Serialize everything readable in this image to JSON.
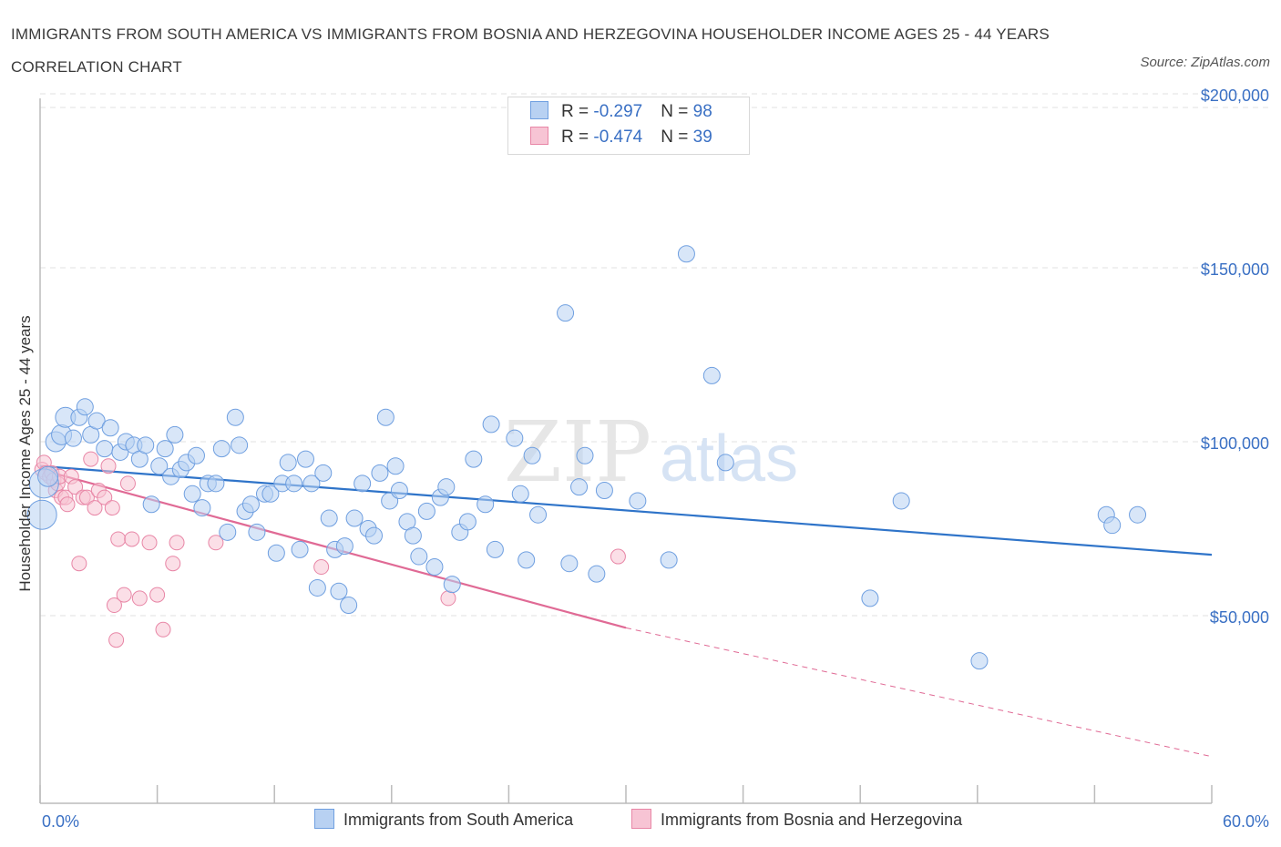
{
  "title": "IMMIGRANTS FROM SOUTH AMERICA VS IMMIGRANTS FROM BOSNIA AND HERZEGOVINA HOUSEHOLDER INCOME AGES 25 - 44 YEARS CORRELATION CHART",
  "source": "Source: ZipAtlas.com",
  "watermark": {
    "zip": "ZIP",
    "atlas": "atlas"
  },
  "legend": {
    "rows": [
      {
        "r_label": "R = ",
        "r_value": "-0.297",
        "n_label": "N = ",
        "n_value": "98"
      },
      {
        "r_label": "R = ",
        "r_value": "-0.474",
        "n_label": "N = ",
        "n_value": "39"
      }
    ]
  },
  "colors": {
    "blue_fill": "#b8d1f2",
    "blue_stroke": "#6f9fe0",
    "blue_line": "#2f74c9",
    "pink_fill": "#f7c4d4",
    "pink_stroke": "#e886a6",
    "pink_line": "#e06a95",
    "grid": "#e0e0e0",
    "tick_text": "#3a70c4"
  },
  "chart_data": {
    "type": "scatter",
    "title": "IMMIGRANTS FROM SOUTH AMERICA VS IMMIGRANTS FROM BOSNIA AND HERZEGOVINA HOUSEHOLDER INCOME AGES 25 - 44 YEARS CORRELATION CHART",
    "xlabel": "",
    "ylabel": "Householder Income Ages 25 - 44 years",
    "xlim": [
      0,
      60
    ],
    "ylim": [
      0,
      200000
    ],
    "x_tick_labels": [
      "0.0%",
      "60.0%"
    ],
    "y_ticks": [
      50000,
      100000,
      150000,
      200000
    ],
    "y_tick_labels": [
      "$50,000",
      "$100,000",
      "$150,000",
      "$200,000"
    ],
    "grid": true,
    "legend_position": "top-center and bottom",
    "series": [
      {
        "name": "Immigrants from South America",
        "color": "#6f9fe0",
        "r": -0.297,
        "n": 98,
        "trend": {
          "x": [
            0,
            60
          ],
          "y": [
            93000,
            67500
          ]
        },
        "points": [
          [
            0.1,
            79000
          ],
          [
            0.2,
            88000
          ],
          [
            0.4,
            90000
          ],
          [
            0.8,
            100000
          ],
          [
            1.1,
            102000
          ],
          [
            1.3,
            107000
          ],
          [
            1.7,
            101000
          ],
          [
            2.0,
            107000
          ],
          [
            2.3,
            110000
          ],
          [
            2.6,
            102000
          ],
          [
            2.9,
            106000
          ],
          [
            3.3,
            98000
          ],
          [
            3.6,
            104000
          ],
          [
            4.1,
            97000
          ],
          [
            4.4,
            100000
          ],
          [
            4.8,
            99000
          ],
          [
            5.1,
            95000
          ],
          [
            5.4,
            99000
          ],
          [
            5.7,
            82000
          ],
          [
            6.1,
            93000
          ],
          [
            6.4,
            98000
          ],
          [
            6.7,
            90000
          ],
          [
            6.9,
            102000
          ],
          [
            7.2,
            92000
          ],
          [
            7.5,
            94000
          ],
          [
            7.8,
            85000
          ],
          [
            8.0,
            96000
          ],
          [
            8.3,
            81000
          ],
          [
            8.6,
            88000
          ],
          [
            9.0,
            88000
          ],
          [
            9.3,
            98000
          ],
          [
            9.6,
            74000
          ],
          [
            10.0,
            107000
          ],
          [
            10.2,
            99000
          ],
          [
            10.5,
            80000
          ],
          [
            10.8,
            82000
          ],
          [
            11.1,
            74000
          ],
          [
            11.5,
            85000
          ],
          [
            11.8,
            85000
          ],
          [
            12.1,
            68000
          ],
          [
            12.4,
            88000
          ],
          [
            12.7,
            94000
          ],
          [
            13.0,
            88000
          ],
          [
            13.3,
            69000
          ],
          [
            13.6,
            95000
          ],
          [
            13.9,
            88000
          ],
          [
            14.2,
            58000
          ],
          [
            14.5,
            91000
          ],
          [
            14.8,
            78000
          ],
          [
            15.1,
            69000
          ],
          [
            15.3,
            57000
          ],
          [
            15.6,
            70000
          ],
          [
            15.8,
            53000
          ],
          [
            16.1,
            78000
          ],
          [
            16.5,
            88000
          ],
          [
            16.8,
            75000
          ],
          [
            17.1,
            73000
          ],
          [
            17.4,
            91000
          ],
          [
            17.7,
            107000
          ],
          [
            17.9,
            83000
          ],
          [
            18.2,
            93000
          ],
          [
            18.4,
            86000
          ],
          [
            18.8,
            77000
          ],
          [
            19.1,
            73000
          ],
          [
            19.4,
            67000
          ],
          [
            19.8,
            80000
          ],
          [
            20.2,
            64000
          ],
          [
            20.5,
            84000
          ],
          [
            20.8,
            87000
          ],
          [
            21.1,
            59000
          ],
          [
            21.5,
            74000
          ],
          [
            21.9,
            77000
          ],
          [
            22.2,
            95000
          ],
          [
            22.8,
            82000
          ],
          [
            23.1,
            105000
          ],
          [
            23.3,
            69000
          ],
          [
            24.3,
            101000
          ],
          [
            24.6,
            85000
          ],
          [
            24.9,
            66000
          ],
          [
            25.2,
            96000
          ],
          [
            25.5,
            79000
          ],
          [
            26.9,
            137000
          ],
          [
            27.1,
            65000
          ],
          [
            27.6,
            87000
          ],
          [
            27.9,
            96000
          ],
          [
            28.5,
            62000
          ],
          [
            28.9,
            86000
          ],
          [
            30.6,
            83000
          ],
          [
            32.2,
            66000
          ],
          [
            33.1,
            154000
          ],
          [
            34.4,
            119000
          ],
          [
            35.1,
            94000
          ],
          [
            42.5,
            55000
          ],
          [
            44.1,
            83000
          ],
          [
            48.1,
            37000
          ],
          [
            54.6,
            79000
          ],
          [
            54.9,
            76000
          ],
          [
            56.2,
            79000
          ]
        ]
      },
      {
        "name": "Immigrants from Bosnia and Herzegovina",
        "color": "#e886a6",
        "r": -0.474,
        "n": 39,
        "trend": {
          "x": [
            0,
            30
          ],
          "y": [
            92000,
            46500
          ]
        },
        "trend_dashed_extension": {
          "x": [
            30,
            60
          ],
          "y": [
            46500,
            9500
          ]
        },
        "points": [
          [
            0.1,
            92000
          ],
          [
            0.2,
            94000
          ],
          [
            0.3,
            91000
          ],
          [
            0.5,
            90000
          ],
          [
            0.6,
            91000
          ],
          [
            0.7,
            89000
          ],
          [
            0.8,
            86000
          ],
          [
            0.9,
            88000
          ],
          [
            1.0,
            90000
          ],
          [
            1.1,
            84000
          ],
          [
            1.3,
            84000
          ],
          [
            1.4,
            82000
          ],
          [
            1.6,
            90000
          ],
          [
            1.8,
            87000
          ],
          [
            2.0,
            65000
          ],
          [
            2.2,
            84000
          ],
          [
            2.4,
            84000
          ],
          [
            2.6,
            95000
          ],
          [
            2.8,
            81000
          ],
          [
            3.0,
            86000
          ],
          [
            3.3,
            84000
          ],
          [
            3.5,
            93000
          ],
          [
            3.7,
            81000
          ],
          [
            3.8,
            53000
          ],
          [
            3.9,
            43000
          ],
          [
            4.0,
            72000
          ],
          [
            4.3,
            56000
          ],
          [
            4.5,
            88000
          ],
          [
            4.7,
            72000
          ],
          [
            5.1,
            55000
          ],
          [
            5.6,
            71000
          ],
          [
            6.0,
            56000
          ],
          [
            6.3,
            46000
          ],
          [
            6.8,
            65000
          ],
          [
            7.0,
            71000
          ],
          [
            9.0,
            71000
          ],
          [
            14.4,
            64000
          ],
          [
            20.9,
            55000
          ],
          [
            29.6,
            67000
          ]
        ]
      }
    ]
  },
  "bottom_legend": {
    "items": [
      "Immigrants from South America",
      "Immigrants from Bosnia and Herzegovina"
    ]
  }
}
